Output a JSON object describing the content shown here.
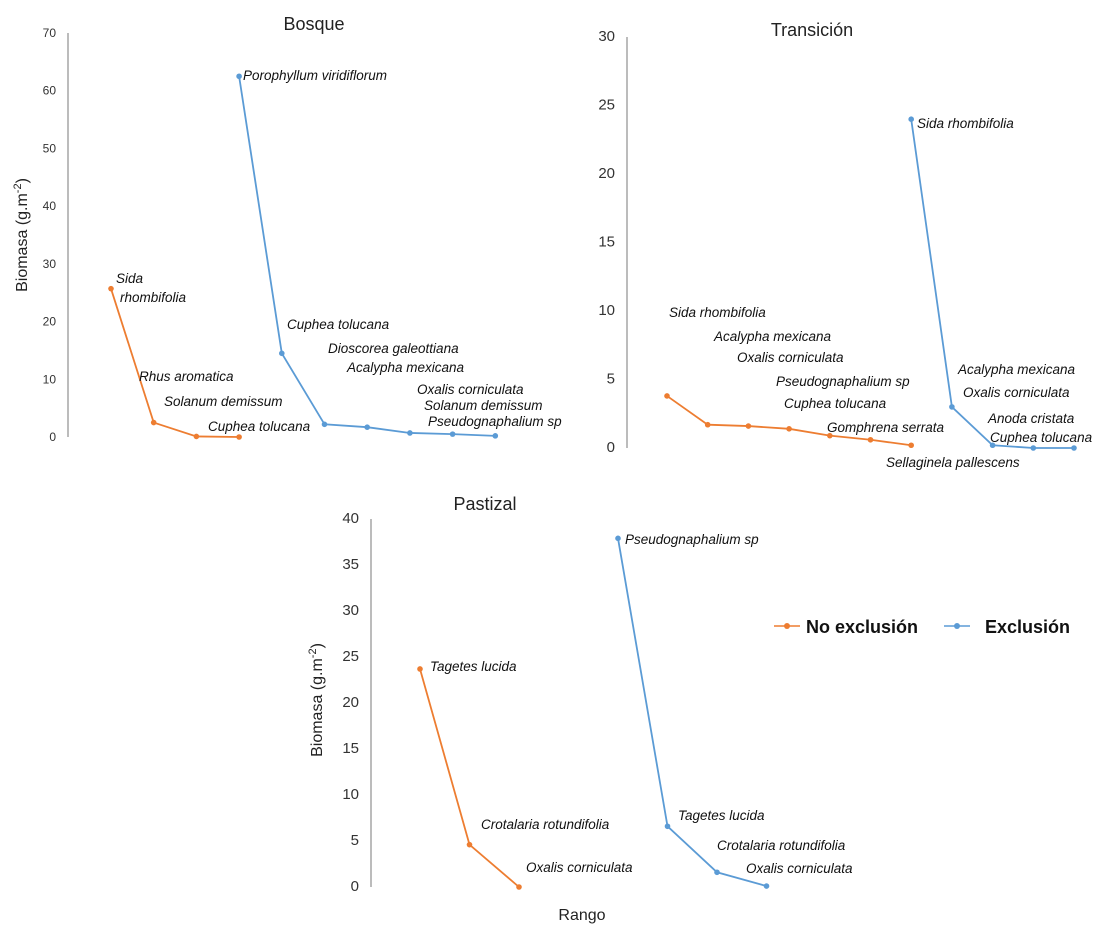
{
  "colors": {
    "no_exclusion": "#ed7d31",
    "exclusion": "#5b9bd5",
    "axis": "#a6a6a6"
  },
  "legend": {
    "no_exclusion": "No exclusión",
    "exclusion": "Exclusión"
  },
  "shared_xlabel": "Rango",
  "chart_data": [
    {
      "type": "line",
      "title": "Bosque",
      "xlabel": "",
      "ylabel": "Biomasa (g.m-2)",
      "ylim": [
        0,
        70
      ],
      "yticks": [
        0,
        10,
        20,
        30,
        40,
        50,
        60,
        70
      ],
      "series": [
        {
          "name": "No exclusión",
          "x": [
            1,
            2,
            3,
            4
          ],
          "values": [
            25.7,
            2.5,
            0.1,
            0.0
          ],
          "labels": [
            "Sida rhombifolia",
            "Rhus aromatica",
            "Solanum demissum",
            "Cuphea tolucana"
          ]
        },
        {
          "name": "Exclusión",
          "x": [
            4,
            5,
            6,
            7,
            8,
            9,
            10
          ],
          "values": [
            62.5,
            14.5,
            2.2,
            1.7,
            0.7,
            0.5,
            0.2
          ],
          "labels": [
            "Porophyllum viridiflorum",
            "Cuphea tolucana",
            "Dioscorea galeottiana",
            "Acalypha mexicana",
            "Oxalis corniculata",
            "Solanum demissum",
            "Pseudognaphalium sp"
          ]
        }
      ]
    },
    {
      "type": "line",
      "title": "Transición",
      "xlabel": "",
      "ylabel": "",
      "ylim": [
        0,
        30
      ],
      "yticks": [
        0,
        5,
        10,
        15,
        20,
        25,
        30
      ],
      "series": [
        {
          "name": "No exclusión",
          "x": [
            1,
            2,
            3,
            4,
            5,
            6,
            7
          ],
          "values": [
            3.8,
            1.7,
            1.6,
            1.4,
            0.9,
            0.6,
            0.2
          ],
          "labels": [
            "Sida rhombifolia",
            "Acalypha mexicana",
            "Oxalis corniculata",
            "Pseudognaphalium sp",
            "Cuphea tolucana",
            "Gomphrena serrata",
            "Sellaginela pallescens"
          ]
        },
        {
          "name": "Exclusión",
          "x": [
            7,
            8,
            9,
            10,
            11
          ],
          "values": [
            24.0,
            3.0,
            0.2,
            0.0,
            0.0
          ],
          "labels": [
            "Sida rhombifolia",
            "Acalypha mexicana",
            "Oxalis corniculata",
            "Anoda cristata",
            "Cuphea tolucana"
          ]
        }
      ]
    },
    {
      "type": "line",
      "title": "Pastizal",
      "xlabel": "Rango",
      "ylabel": "Biomasa (g.m-2)",
      "ylim": [
        0,
        40
      ],
      "yticks": [
        0,
        5,
        10,
        15,
        20,
        25,
        30,
        35,
        40
      ],
      "series": [
        {
          "name": "No exclusión",
          "x": [
            1,
            2,
            3
          ],
          "values": [
            23.7,
            4.6,
            0.0
          ],
          "labels": [
            "Tagetes lucida",
            "Crotalaria rotundifolia",
            "Oxalis corniculata"
          ]
        },
        {
          "name": "Exclusión",
          "x": [
            5,
            6,
            7,
            8
          ],
          "values": [
            37.9,
            6.6,
            1.6,
            0.1
          ],
          "labels": [
            "Pseudognaphalium sp",
            "Tagetes lucida",
            "Crotalaria rotundifolia",
            "Oxalis corniculata"
          ]
        }
      ]
    }
  ]
}
